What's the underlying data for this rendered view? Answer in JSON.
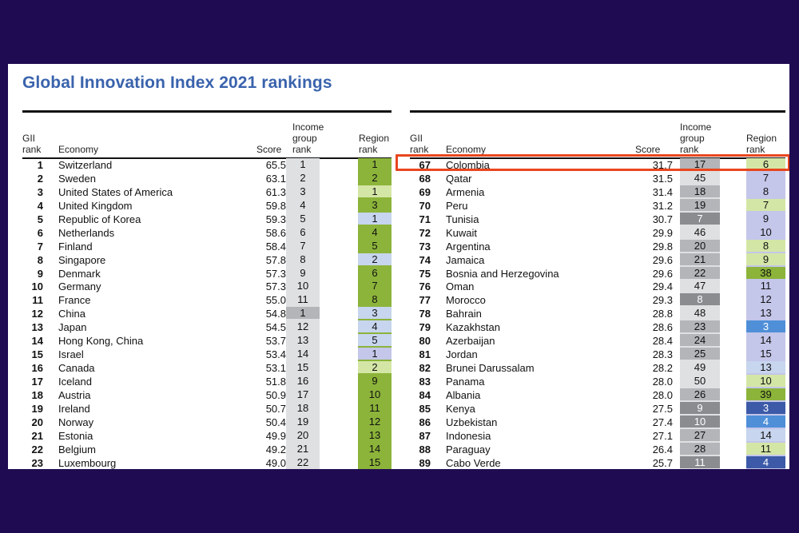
{
  "title": "Global Innovation Index 2021 rankings",
  "headers": {
    "gii_rank": [
      "GII",
      "rank"
    ],
    "economy": "Economy",
    "score": "Score",
    "income": [
      "Income",
      "group",
      "rank"
    ],
    "region": [
      "Region",
      "rank"
    ]
  },
  "colors": {
    "background": "#1f0b52",
    "title": "#3a63ad",
    "highlight": "#e8461e",
    "income_gray_light": "#dfe0e2",
    "income_gray_mid": "#b3b5b8",
    "income_gray_dark": "#8a8c90",
    "region_green_dark": "#8cb43a",
    "region_green_light": "#d4e6a6",
    "region_blue_light": "#c7d5ee",
    "region_lavender": "#c4c6ea",
    "region_blue_mid": "#4f8fd8",
    "region_blue_dark": "#3c5aa8"
  },
  "left_rows": [
    {
      "rank": "1",
      "economy": "Switzerland",
      "score": "65.5",
      "income": "1",
      "region": "1",
      "ic": "l",
      "rc": "gd"
    },
    {
      "rank": "2",
      "economy": "Sweden",
      "score": "63.1",
      "income": "2",
      "region": "2",
      "ic": "l",
      "rc": "gd"
    },
    {
      "rank": "3",
      "economy": "United States of America",
      "score": "61.3",
      "income": "3",
      "region": "1",
      "ic": "l",
      "rc": "gl"
    },
    {
      "rank": "4",
      "economy": "United Kingdom",
      "score": "59.8",
      "income": "4",
      "region": "3",
      "ic": "l",
      "rc": "gd"
    },
    {
      "rank": "5",
      "economy": "Republic of Korea",
      "score": "59.3",
      "income": "5",
      "region": "1",
      "ic": "l",
      "rc": "bl"
    },
    {
      "rank": "6",
      "economy": "Netherlands",
      "score": "58.6",
      "income": "6",
      "region": "4",
      "ic": "l",
      "rc": "gd"
    },
    {
      "rank": "7",
      "economy": "Finland",
      "score": "58.4",
      "income": "7",
      "region": "5",
      "ic": "l",
      "rc": "gd"
    },
    {
      "rank": "8",
      "economy": "Singapore",
      "score": "57.8",
      "income": "8",
      "region": "2",
      "ic": "l",
      "rc": "bl"
    },
    {
      "rank": "9",
      "economy": "Denmark",
      "score": "57.3",
      "income": "9",
      "region": "6",
      "ic": "l",
      "rc": "gd"
    },
    {
      "rank": "10",
      "economy": "Germany",
      "score": "57.3",
      "income": "10",
      "region": "7",
      "ic": "l",
      "rc": "gd"
    },
    {
      "rank": "11",
      "economy": "France",
      "score": "55.0",
      "income": "11",
      "region": "8",
      "ic": "l",
      "rc": "gd"
    },
    {
      "rank": "12",
      "economy": "China",
      "score": "54.8",
      "income": "1",
      "region": "3",
      "ic": "m",
      "rc": "bl"
    },
    {
      "rank": "13",
      "economy": "Japan",
      "score": "54.5",
      "income": "12",
      "region": "4",
      "ic": "l",
      "rc": "bl"
    },
    {
      "rank": "14",
      "economy": "Hong Kong, China",
      "score": "53.7",
      "income": "13",
      "region": "5",
      "ic": "l",
      "rc": "bl"
    },
    {
      "rank": "15",
      "economy": "Israel",
      "score": "53.4",
      "income": "14",
      "region": "1",
      "ic": "l",
      "rc": "lv"
    },
    {
      "rank": "16",
      "economy": "Canada",
      "score": "53.1",
      "income": "15",
      "region": "2",
      "ic": "l",
      "rc": "gl"
    },
    {
      "rank": "17",
      "economy": "Iceland",
      "score": "51.8",
      "income": "16",
      "region": "9",
      "ic": "l",
      "rc": "gd"
    },
    {
      "rank": "18",
      "economy": "Austria",
      "score": "50.9",
      "income": "17",
      "region": "10",
      "ic": "l",
      "rc": "gd"
    },
    {
      "rank": "19",
      "economy": "Ireland",
      "score": "50.7",
      "income": "18",
      "region": "11",
      "ic": "l",
      "rc": "gd"
    },
    {
      "rank": "20",
      "economy": "Norway",
      "score": "50.4",
      "income": "19",
      "region": "12",
      "ic": "l",
      "rc": "gd"
    },
    {
      "rank": "21",
      "economy": "Estonia",
      "score": "49.9",
      "income": "20",
      "region": "13",
      "ic": "l",
      "rc": "gd"
    },
    {
      "rank": "22",
      "economy": "Belgium",
      "score": "49.2",
      "income": "21",
      "region": "14",
      "ic": "l",
      "rc": "gd"
    },
    {
      "rank": "23",
      "economy": "Luxembourg",
      "score": "49.0",
      "income": "22",
      "region": "15",
      "ic": "l",
      "rc": "gd"
    }
  ],
  "right_rows": [
    {
      "rank": "67",
      "economy": "Colombia",
      "score": "31.7",
      "income": "17",
      "region": "6",
      "ic": "m",
      "rc": "gl"
    },
    {
      "rank": "68",
      "economy": "Qatar",
      "score": "31.5",
      "income": "45",
      "region": "7",
      "ic": "l",
      "rc": "lv"
    },
    {
      "rank": "69",
      "economy": "Armenia",
      "score": "31.4",
      "income": "18",
      "region": "8",
      "ic": "m",
      "rc": "lv"
    },
    {
      "rank": "70",
      "economy": "Peru",
      "score": "31.2",
      "income": "19",
      "region": "7",
      "ic": "m",
      "rc": "gl"
    },
    {
      "rank": "71",
      "economy": "Tunisia",
      "score": "30.7",
      "income": "7",
      "region": "9",
      "ic": "d",
      "rc": "lv"
    },
    {
      "rank": "72",
      "economy": "Kuwait",
      "score": "29.9",
      "income": "46",
      "region": "10",
      "ic": "l",
      "rc": "lv"
    },
    {
      "rank": "73",
      "economy": "Argentina",
      "score": "29.8",
      "income": "20",
      "region": "8",
      "ic": "m",
      "rc": "gl"
    },
    {
      "rank": "74",
      "economy": "Jamaica",
      "score": "29.6",
      "income": "21",
      "region": "9",
      "ic": "m",
      "rc": "gl"
    },
    {
      "rank": "75",
      "economy": "Bosnia and Herzegovina",
      "score": "29.6",
      "income": "22",
      "region": "38",
      "ic": "m",
      "rc": "gd"
    },
    {
      "rank": "76",
      "economy": "Oman",
      "score": "29.4",
      "income": "47",
      "region": "11",
      "ic": "l",
      "rc": "lv"
    },
    {
      "rank": "77",
      "economy": "Morocco",
      "score": "29.3",
      "income": "8",
      "region": "12",
      "ic": "d",
      "rc": "lv"
    },
    {
      "rank": "78",
      "economy": "Bahrain",
      "score": "28.8",
      "income": "48",
      "region": "13",
      "ic": "l",
      "rc": "lv"
    },
    {
      "rank": "79",
      "economy": "Kazakhstan",
      "score": "28.6",
      "income": "23",
      "region": "3",
      "ic": "m",
      "rc": "bm"
    },
    {
      "rank": "80",
      "economy": "Azerbaijan",
      "score": "28.4",
      "income": "24",
      "region": "14",
      "ic": "m",
      "rc": "lv"
    },
    {
      "rank": "81",
      "economy": "Jordan",
      "score": "28.3",
      "income": "25",
      "region": "15",
      "ic": "m",
      "rc": "lv"
    },
    {
      "rank": "82",
      "economy": "Brunei Darussalam",
      "score": "28.2",
      "income": "49",
      "region": "13",
      "ic": "l",
      "rc": "bl"
    },
    {
      "rank": "83",
      "economy": "Panama",
      "score": "28.0",
      "income": "50",
      "region": "10",
      "ic": "l",
      "rc": "gl"
    },
    {
      "rank": "84",
      "economy": "Albania",
      "score": "28.0",
      "income": "26",
      "region": "39",
      "ic": "m",
      "rc": "gd"
    },
    {
      "rank": "85",
      "economy": "Kenya",
      "score": "27.5",
      "income": "9",
      "region": "3",
      "ic": "d",
      "rc": "bd"
    },
    {
      "rank": "86",
      "economy": "Uzbekistan",
      "score": "27.4",
      "income": "10",
      "region": "4",
      "ic": "d",
      "rc": "bm"
    },
    {
      "rank": "87",
      "economy": "Indonesia",
      "score": "27.1",
      "income": "27",
      "region": "14",
      "ic": "m",
      "rc": "bl"
    },
    {
      "rank": "88",
      "economy": "Paraguay",
      "score": "26.4",
      "income": "28",
      "region": "11",
      "ic": "m",
      "rc": "gl"
    },
    {
      "rank": "89",
      "economy": "Cabo Verde",
      "score": "25.7",
      "income": "11",
      "region": "4",
      "ic": "d",
      "rc": "bd"
    }
  ]
}
